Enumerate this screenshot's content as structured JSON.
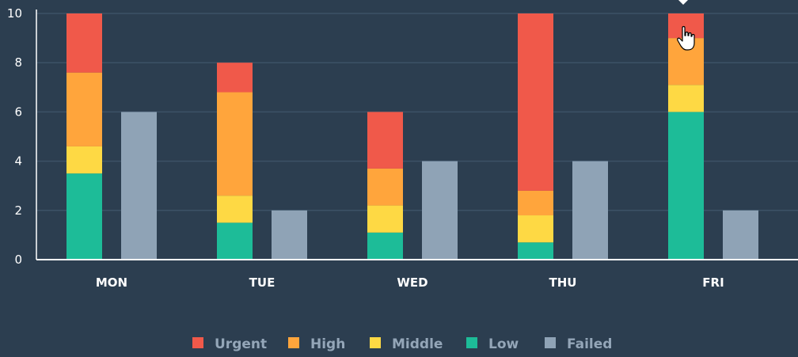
{
  "chart_data": {
    "type": "bar",
    "stacked": true,
    "categories": [
      "MON",
      "TUE",
      "WED",
      "THU",
      "FRI"
    ],
    "ylim": [
      0,
      10
    ],
    "yticks": [
      0,
      2,
      4,
      6,
      8,
      10
    ],
    "grid": true,
    "legend_position": "bottom",
    "series": [
      {
        "name": "Urgent",
        "stack": "tasks",
        "color": "#f0594a",
        "values": [
          2.4,
          1.2,
          2.3,
          7.2,
          1.0
        ]
      },
      {
        "name": "High",
        "stack": "tasks",
        "color": "#ffa53c",
        "values": [
          3.0,
          4.2,
          1.5,
          1.0,
          1.9
        ]
      },
      {
        "name": "Middle",
        "stack": "tasks",
        "color": "#fed944",
        "values": [
          1.1,
          1.1,
          1.1,
          1.1,
          1.1
        ]
      },
      {
        "name": "Low",
        "stack": "tasks",
        "color": "#1dbc98",
        "values": [
          3.5,
          1.5,
          1.1,
          0.7,
          6.0
        ]
      },
      {
        "name": "Failed",
        "stack": "failed",
        "color": "#8fa3b6",
        "values": [
          6,
          2,
          4,
          4,
          2
        ]
      }
    ]
  }
}
